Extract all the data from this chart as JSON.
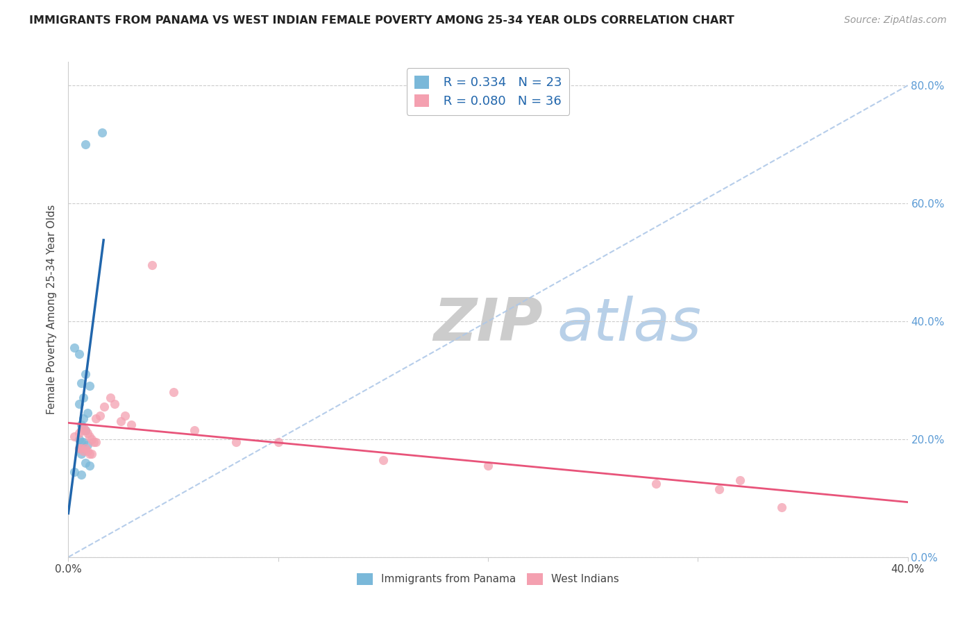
{
  "title": "IMMIGRANTS FROM PANAMA VS WEST INDIAN FEMALE POVERTY AMONG 25-34 YEAR OLDS CORRELATION CHART",
  "source": "Source: ZipAtlas.com",
  "ylabel": "Female Poverty Among 25-34 Year Olds",
  "xlim": [
    0.0,
    0.4
  ],
  "ylim": [
    0.0,
    0.84
  ],
  "R1": 0.334,
  "N1": 23,
  "R2": 0.08,
  "N2": 36,
  "blue_color": "#7ab8d9",
  "pink_color": "#f4a0b0",
  "blue_line_color": "#2166ac",
  "pink_line_color": "#e8547a",
  "diag_color": "#aec8e8",
  "watermark_zip_color": "#c8d8e8",
  "watermark_atlas_color": "#b8cce0",
  "background_color": "#ffffff",
  "panama_x": [
    0.008,
    0.016,
    0.003,
    0.005,
    0.008,
    0.006,
    0.01,
    0.007,
    0.005,
    0.009,
    0.007,
    0.006,
    0.008,
    0.005,
    0.006,
    0.007,
    0.009,
    0.005,
    0.006,
    0.008,
    0.01,
    0.003,
    0.006
  ],
  "panama_y": [
    0.7,
    0.72,
    0.355,
    0.345,
    0.31,
    0.295,
    0.29,
    0.27,
    0.26,
    0.245,
    0.235,
    0.225,
    0.215,
    0.2,
    0.195,
    0.195,
    0.19,
    0.185,
    0.175,
    0.16,
    0.155,
    0.145,
    0.14
  ],
  "wi_x": [
    0.003,
    0.005,
    0.006,
    0.007,
    0.008,
    0.009,
    0.01,
    0.011,
    0.012,
    0.013,
    0.005,
    0.006,
    0.007,
    0.008,
    0.009,
    0.01,
    0.011,
    0.013,
    0.015,
    0.017,
    0.02,
    0.022,
    0.025,
    0.027,
    0.03,
    0.04,
    0.05,
    0.06,
    0.08,
    0.1,
    0.15,
    0.2,
    0.28,
    0.31,
    0.32,
    0.34
  ],
  "wi_y": [
    0.205,
    0.21,
    0.215,
    0.22,
    0.215,
    0.21,
    0.205,
    0.2,
    0.195,
    0.195,
    0.185,
    0.185,
    0.18,
    0.185,
    0.18,
    0.175,
    0.175,
    0.235,
    0.24,
    0.255,
    0.27,
    0.26,
    0.23,
    0.24,
    0.225,
    0.495,
    0.28,
    0.215,
    0.195,
    0.195,
    0.165,
    0.155,
    0.125,
    0.115,
    0.13,
    0.085
  ]
}
